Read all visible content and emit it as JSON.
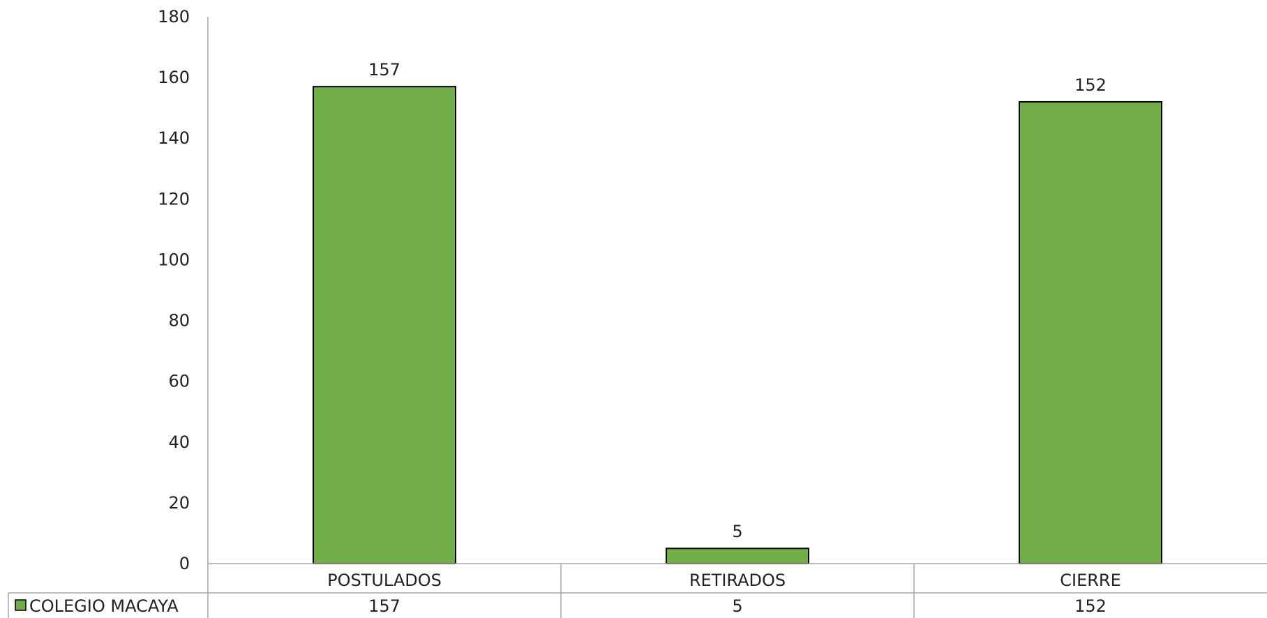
{
  "chart_data": {
    "type": "bar",
    "categories": [
      "POSTULADOS",
      "RETIRADOS",
      "CIERRE"
    ],
    "series": [
      {
        "name": "COLEGIO MACAYA",
        "values": [
          157,
          5,
          152
        ],
        "color": "#70ad47"
      }
    ],
    "ylim": [
      0,
      180
    ],
    "yticks": [
      0,
      20,
      40,
      60,
      80,
      100,
      120,
      140,
      160,
      180
    ],
    "data_labels": [
      "157",
      "5",
      "152"
    ],
    "gridlines": false,
    "legend": "data-table",
    "data_table": true
  }
}
